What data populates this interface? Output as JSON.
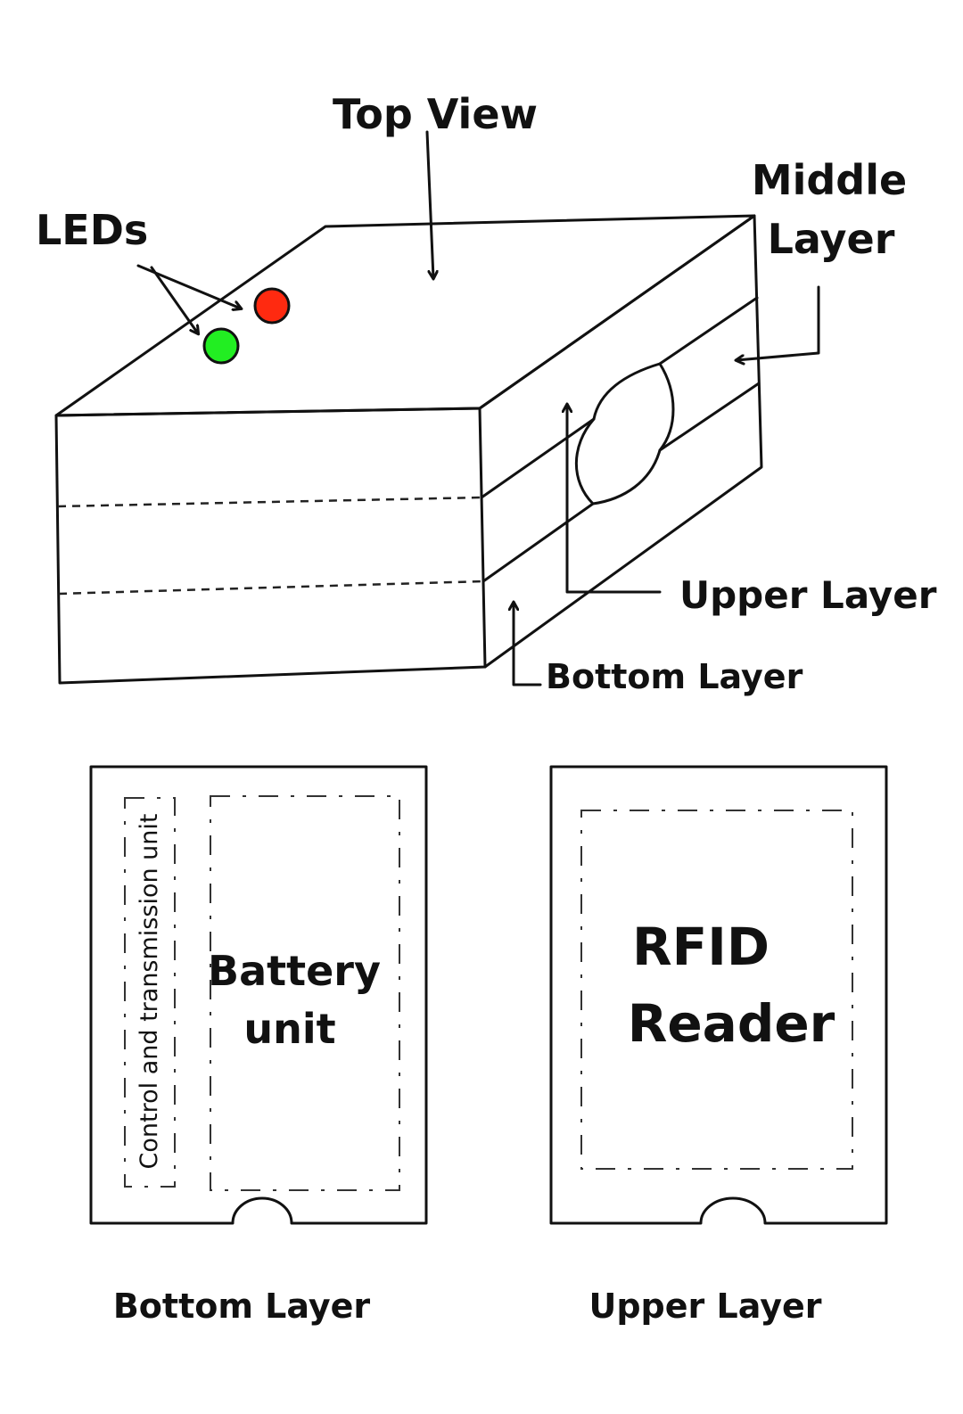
{
  "labels": {
    "top_view": "Top View",
    "leds": "LEDs",
    "middle_layer_line1": "Middle",
    "middle_layer_line2": "Layer",
    "upper_layer": "Upper Layer",
    "bottom_layer": "Bottom Layer"
  },
  "bottom_panel": {
    "control_unit": "Control and transmission unit",
    "battery_line1": "Battery",
    "battery_line2": "unit",
    "caption": "Bottom Layer"
  },
  "upper_panel": {
    "rfid_line1": "RFID",
    "rfid_line2": "Reader",
    "caption": "Upper Layer"
  },
  "colors": {
    "led_red": "#ff2a10",
    "led_green": "#22ee22",
    "ink": "#111111"
  }
}
